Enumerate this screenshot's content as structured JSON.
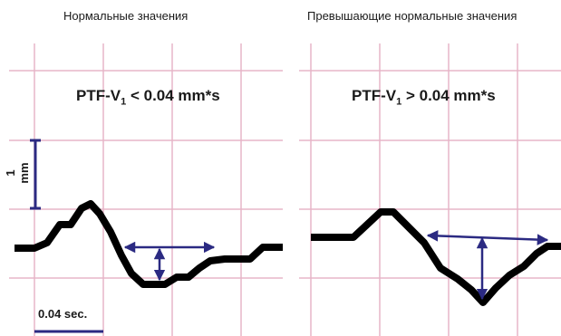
{
  "panels": [
    {
      "title": "Нормальные значения",
      "formula_prefix": "PTF-V",
      "formula_sub": "1",
      "formula_suffix": " < 0.04 mm*s"
    },
    {
      "title": "Превышающие нормальные значения",
      "formula_prefix": "PTF-V",
      "formula_sub": "1",
      "formula_suffix": " > 0.04 mm*s"
    }
  ],
  "scale": {
    "amplitude_label": "1 mm",
    "time_label": "0.04 sec."
  },
  "colors": {
    "grid": "#e7b6c8",
    "trace": "#000000",
    "arrow": "#2b2a82",
    "text": "#1a1a1a"
  }
}
